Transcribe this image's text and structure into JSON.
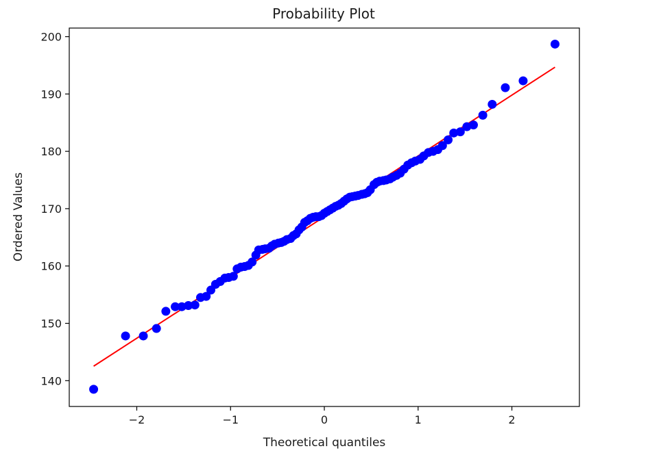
{
  "chart_data": {
    "type": "scatter",
    "title": "Probability Plot",
    "xlabel": "Theoretical quantiles",
    "ylabel": "Ordered Values",
    "xlim": [
      -2.72,
      2.72
    ],
    "ylim": [
      135.5,
      201.5
    ],
    "xticks": [
      -2,
      -1,
      0,
      1,
      2
    ],
    "xtick_labels": [
      "−2",
      "−1",
      "0",
      "1",
      "2"
    ],
    "yticks": [
      140,
      150,
      160,
      170,
      180,
      190,
      200
    ],
    "ytick_labels": [
      "140",
      "150",
      "160",
      "170",
      "180",
      "190",
      "200"
    ],
    "grid": false,
    "legend": "none",
    "point_color": "#0000ff",
    "line_color": "#ff0000",
    "fit_line": {
      "slope": 10.6,
      "intercept": 168.6,
      "x_range": [
        -2.46,
        2.46
      ]
    },
    "points": [
      [
        -2.46,
        138.5
      ],
      [
        -2.12,
        147.8
      ],
      [
        -1.93,
        147.8
      ],
      [
        -1.79,
        149.1
      ],
      [
        -1.69,
        152.1
      ],
      [
        -1.59,
        152.9
      ],
      [
        -1.52,
        152.9
      ],
      [
        -1.45,
        153.1
      ],
      [
        -1.38,
        153.2
      ],
      [
        -1.32,
        154.5
      ],
      [
        -1.26,
        154.7
      ],
      [
        -1.21,
        155.8
      ],
      [
        -1.16,
        156.8
      ],
      [
        -1.11,
        157.3
      ],
      [
        -1.06,
        157.9
      ],
      [
        -1.02,
        158.0
      ],
      [
        -0.97,
        158.2
      ],
      [
        -0.93,
        159.5
      ],
      [
        -0.89,
        159.8
      ],
      [
        -0.85,
        159.9
      ],
      [
        -0.81,
        160.1
      ],
      [
        -0.77,
        160.7
      ],
      [
        -0.73,
        161.9
      ],
      [
        -0.7,
        162.8
      ],
      [
        -0.66,
        162.9
      ],
      [
        -0.63,
        163.0
      ],
      [
        -0.59,
        163.1
      ],
      [
        -0.56,
        163.5
      ],
      [
        -0.53,
        163.8
      ],
      [
        -0.49,
        164.0
      ],
      [
        -0.46,
        164.1
      ],
      [
        -0.43,
        164.3
      ],
      [
        -0.4,
        164.6
      ],
      [
        -0.36,
        164.8
      ],
      [
        -0.33,
        165.3
      ],
      [
        -0.3,
        165.6
      ],
      [
        -0.27,
        166.3
      ],
      [
        -0.24,
        166.8
      ],
      [
        -0.21,
        167.6
      ],
      [
        -0.18,
        167.9
      ],
      [
        -0.15,
        168.3
      ],
      [
        -0.12,
        168.5
      ],
      [
        -0.09,
        168.6
      ],
      [
        -0.06,
        168.6
      ],
      [
        -0.03,
        168.8
      ],
      [
        0.0,
        169.2
      ],
      [
        0.03,
        169.5
      ],
      [
        0.06,
        169.8
      ],
      [
        0.09,
        170.1
      ],
      [
        0.12,
        170.4
      ],
      [
        0.15,
        170.6
      ],
      [
        0.18,
        170.9
      ],
      [
        0.21,
        171.3
      ],
      [
        0.24,
        171.7
      ],
      [
        0.27,
        172.0
      ],
      [
        0.3,
        172.1
      ],
      [
        0.33,
        172.2
      ],
      [
        0.36,
        172.3
      ],
      [
        0.4,
        172.5
      ],
      [
        0.43,
        172.6
      ],
      [
        0.46,
        172.8
      ],
      [
        0.49,
        173.3
      ],
      [
        0.53,
        174.2
      ],
      [
        0.56,
        174.6
      ],
      [
        0.59,
        174.8
      ],
      [
        0.63,
        174.9
      ],
      [
        0.66,
        175.0
      ],
      [
        0.7,
        175.2
      ],
      [
        0.73,
        175.5
      ],
      [
        0.77,
        175.8
      ],
      [
        0.81,
        176.2
      ],
      [
        0.85,
        176.9
      ],
      [
        0.89,
        177.6
      ],
      [
        0.93,
        178.0
      ],
      [
        0.97,
        178.3
      ],
      [
        1.02,
        178.6
      ],
      [
        1.06,
        179.2
      ],
      [
        1.11,
        179.8
      ],
      [
        1.16,
        180.0
      ],
      [
        1.21,
        180.3
      ],
      [
        1.26,
        181.0
      ],
      [
        1.32,
        182.0
      ],
      [
        1.38,
        183.2
      ],
      [
        1.45,
        183.4
      ],
      [
        1.52,
        184.3
      ],
      [
        1.59,
        184.6
      ],
      [
        1.69,
        186.3
      ],
      [
        1.79,
        188.2
      ],
      [
        1.93,
        191.1
      ],
      [
        2.12,
        192.3
      ],
      [
        2.46,
        198.7
      ]
    ]
  }
}
